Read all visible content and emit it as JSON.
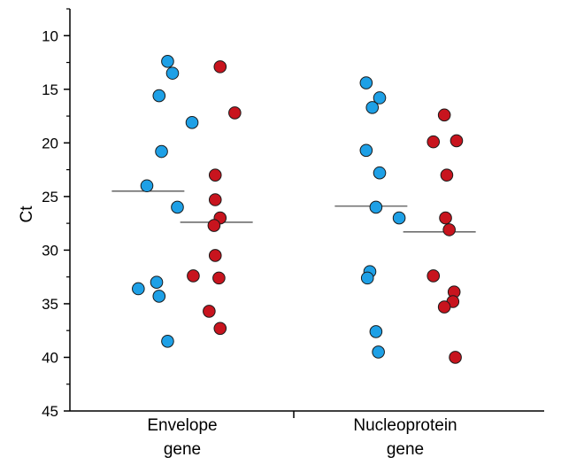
{
  "chart_data": {
    "type": "scatter",
    "ylabel": "Ct",
    "xlabel": "",
    "ylim": [
      45,
      7.5
    ],
    "y_inverted": true,
    "yticks": [
      10,
      15,
      20,
      25,
      30,
      35,
      40,
      45
    ],
    "categories": [
      {
        "lines": [
          "Envelope",
          "gene"
        ]
      },
      {
        "lines": [
          "Nucleoprotein",
          "gene"
        ]
      }
    ],
    "colors": {
      "blue": "#1ea0e6",
      "red": "#c8141e",
      "outline": "#1a1a1a",
      "median": "#555555"
    },
    "groups": [
      {
        "category": 0,
        "color_key": "blue",
        "median": 24.5,
        "points": [
          {
            "dx": -0.12,
            "y": 12.4
          },
          {
            "dx": -0.08,
            "y": 13.5
          },
          {
            "dx": -0.19,
            "y": 15.6
          },
          {
            "dx": 0.08,
            "y": 18.1
          },
          {
            "dx": -0.17,
            "y": 20.8
          },
          {
            "dx": -0.29,
            "y": 24.0
          },
          {
            "dx": -0.04,
            "y": 26.0
          },
          {
            "dx": -0.21,
            "y": 33.0
          },
          {
            "dx": -0.36,
            "y": 33.6
          },
          {
            "dx": -0.19,
            "y": 34.3
          },
          {
            "dx": -0.12,
            "y": 38.5
          }
        ]
      },
      {
        "category": 0,
        "color_key": "red",
        "median": 27.4,
        "points": [
          {
            "dx": 0.31,
            "y": 12.9
          },
          {
            "dx": 0.43,
            "y": 17.2
          },
          {
            "dx": 0.27,
            "y": 23.0
          },
          {
            "dx": 0.27,
            "y": 25.3
          },
          {
            "dx": 0.31,
            "y": 27.0
          },
          {
            "dx": 0.26,
            "y": 27.7
          },
          {
            "dx": 0.27,
            "y": 30.5
          },
          {
            "dx": 0.09,
            "y": 32.4
          },
          {
            "dx": 0.3,
            "y": 32.6
          },
          {
            "dx": 0.22,
            "y": 35.7
          },
          {
            "dx": 0.31,
            "y": 37.3
          }
        ]
      },
      {
        "category": 1,
        "color_key": "blue",
        "median": 25.9,
        "points": [
          {
            "dx": -0.32,
            "y": 14.4
          },
          {
            "dx": -0.21,
            "y": 15.8
          },
          {
            "dx": -0.27,
            "y": 16.7
          },
          {
            "dx": -0.32,
            "y": 20.7
          },
          {
            "dx": -0.21,
            "y": 22.8
          },
          {
            "dx": -0.24,
            "y": 26.0
          },
          {
            "dx": -0.05,
            "y": 27.0
          },
          {
            "dx": -0.29,
            "y": 32.0
          },
          {
            "dx": -0.31,
            "y": 32.6
          },
          {
            "dx": -0.24,
            "y": 37.6
          },
          {
            "dx": -0.22,
            "y": 39.5
          }
        ]
      },
      {
        "category": 1,
        "color_key": "red",
        "median": 28.3,
        "points": [
          {
            "dx": 0.32,
            "y": 17.4
          },
          {
            "dx": 0.23,
            "y": 19.9
          },
          {
            "dx": 0.42,
            "y": 19.8
          },
          {
            "dx": 0.34,
            "y": 23.0
          },
          {
            "dx": 0.33,
            "y": 27.0
          },
          {
            "dx": 0.36,
            "y": 28.1
          },
          {
            "dx": 0.23,
            "y": 32.4
          },
          {
            "dx": 0.4,
            "y": 33.9
          },
          {
            "dx": 0.39,
            "y": 34.8
          },
          {
            "dx": 0.32,
            "y": 35.3
          },
          {
            "dx": 0.41,
            "y": 40.0
          }
        ]
      }
    ]
  }
}
